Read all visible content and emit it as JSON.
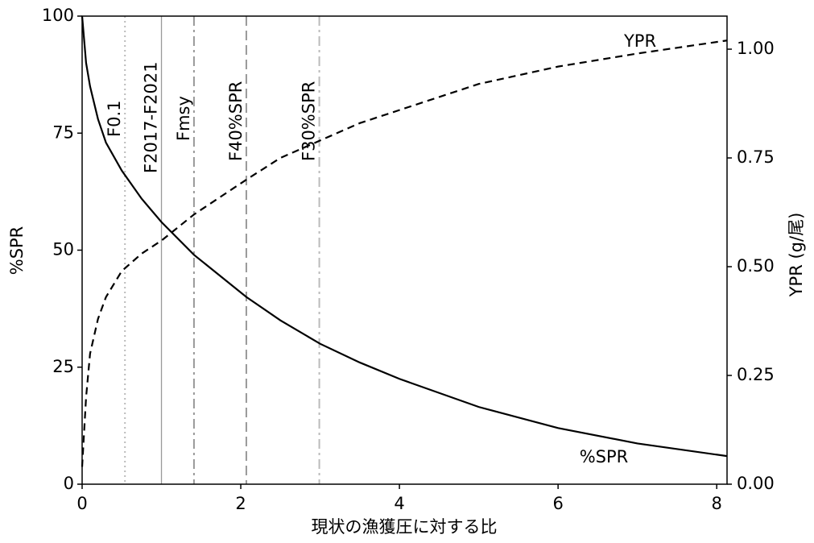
{
  "chart_data": {
    "type": "line",
    "xlabel": "現状の漁獲圧に対する比",
    "ylabel": "%SPR",
    "y2label": "YPR (g/尾)",
    "x": [
      0,
      0.05,
      0.1,
      0.2,
      0.3,
      0.5,
      0.75,
      1.0,
      1.41,
      2.07,
      2.5,
      3.0,
      3.5,
      4.0,
      5.0,
      6.0,
      7.0,
      8.13
    ],
    "series": [
      {
        "name": "%SPR",
        "color": "#000000",
        "dash": "solid",
        "values": [
          100,
          90,
          85,
          78,
          73,
          67,
          61,
          56,
          49,
          40,
          35,
          30,
          26,
          22.5,
          16.5,
          12,
          8.7,
          6
        ]
      },
      {
        "name": "YPR",
        "color": "#000000",
        "dash": "dashed",
        "axis": "y2",
        "values": [
          0.04,
          0.2,
          0.3,
          0.38,
          0.43,
          0.49,
          0.53,
          0.56,
          0.62,
          0.7,
          0.75,
          0.79,
          0.83,
          0.86,
          0.92,
          0.96,
          0.99,
          1.02
        ]
      }
    ],
    "reference_lines": [
      {
        "label": "F0.1",
        "x": 0.54,
        "color": "#bbbbbb",
        "style": "dotted"
      },
      {
        "label": "F2017-F2021",
        "x": 1.0,
        "color": "#999999",
        "style": "solid"
      },
      {
        "label": "Fmsy",
        "x": 1.41,
        "color": "#999999",
        "style": "dashdot"
      },
      {
        "label": "F40%SPR",
        "x": 2.07,
        "color": "#999999",
        "style": "dashed"
      },
      {
        "label": "F30%SPR",
        "x": 2.99,
        "color": "#bbbbbb",
        "style": "dashdot"
      }
    ],
    "xlim": [
      0,
      8.13
    ],
    "xticks": [
      0,
      2,
      4,
      6,
      8
    ],
    "ylim": [
      0,
      100
    ],
    "yticks": [
      0,
      25,
      50,
      75,
      100
    ],
    "y2lim": [
      0,
      1.076
    ],
    "y2ticks": [
      {
        "value": 0,
        "label": "0.00"
      },
      {
        "value": 0.25,
        "label": "0.25"
      },
      {
        "value": 0.5,
        "label": "0.50"
      },
      {
        "value": 0.75,
        "label": "0.75"
      },
      {
        "value": 1.0,
        "label": "1.00"
      }
    ]
  }
}
